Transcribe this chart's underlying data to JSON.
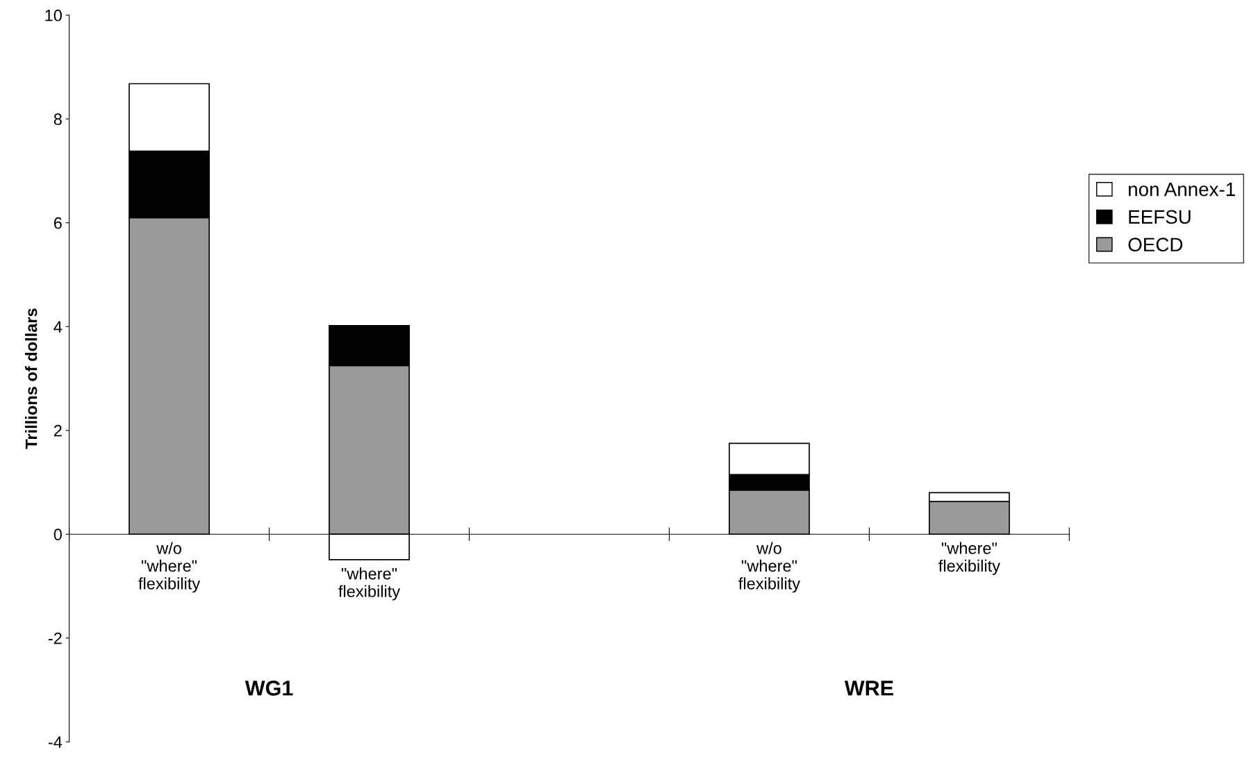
{
  "chart_data": {
    "type": "bar",
    "stacked": true,
    "ylabel": "Trillions of dollars",
    "categories": [
      "w/o\n\"where\"\nflexibility",
      "\"where\"\nflexibility",
      null,
      "w/o\n\"where\"\nflexibility",
      "\"where\"\nflexibility"
    ],
    "series": [
      {
        "name": "OECD",
        "color": "#9a9a9a",
        "values": [
          6.1,
          3.25,
          null,
          0.85,
          0.63
        ]
      },
      {
        "name": "EEFSU",
        "color": "#000000",
        "values": [
          1.28,
          0.77,
          null,
          0.3,
          null
        ]
      },
      {
        "name": "non Annex-1",
        "color": "#ffffff",
        "values": [
          1.3,
          -0.49,
          null,
          0.6,
          0.17
        ]
      }
    ],
    "ylim": [
      -4,
      10
    ],
    "yticks": [
      -4,
      -2,
      0,
      2,
      4,
      6,
      8,
      10
    ],
    "grid": false,
    "legend": "right",
    "annotations": [
      "WG1",
      "WRE"
    ]
  }
}
